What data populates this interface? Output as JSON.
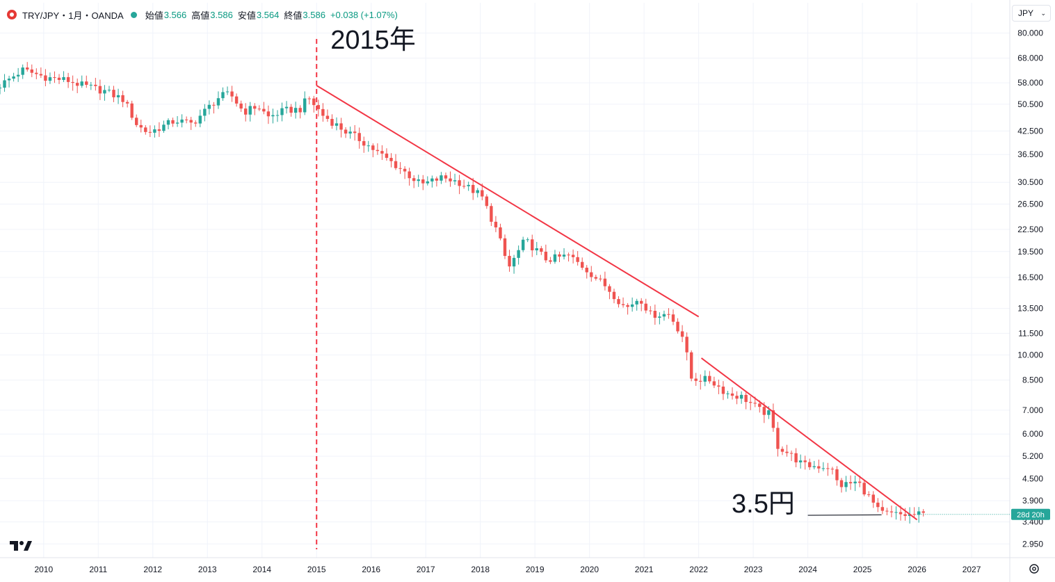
{
  "legend": {
    "symbol": "TRY/JPY・1月・OANDA",
    "open_label": "始値",
    "open": "3.566",
    "high_label": "高値",
    "high": "3.586",
    "low_label": "安値",
    "low": "3.564",
    "close_label": "終値",
    "close": "3.586",
    "change": "+0.038 (+1.07%)"
  },
  "currency_button": {
    "label": "JPY"
  },
  "annotations": {
    "year_marker": "2015年",
    "price_marker": "3.5円"
  },
  "countdown_label": "28d 20h",
  "icons": {
    "logo": "tradingview-logo-icon",
    "settings": "settings-gear-icon",
    "dropdown": "chevron-down-icon"
  },
  "colors": {
    "up": "#26a69a",
    "down": "#ef5350",
    "trendline": "#f23645",
    "grid": "#f0f3fa",
    "text": "#131722",
    "countdown_bg": "#26a69a"
  },
  "chart_data": {
    "type": "candlestick",
    "scale": "log",
    "title": "TRY/JPY・1月・OANDA",
    "y_tick_labels": [
      "80.000",
      "68.000",
      "58.000",
      "50.500",
      "42.500",
      "36.500",
      "30.500",
      "26.500",
      "22.500",
      "19.500",
      "16.500",
      "13.500",
      "11.500",
      "10.000",
      "8.500",
      "7.000",
      "6.000",
      "5.200",
      "4.500",
      "3.900",
      "3.400",
      "2.950"
    ],
    "x_tick_labels": [
      "2010",
      "2011",
      "2012",
      "2013",
      "2014",
      "2015",
      "2016",
      "2017",
      "2018",
      "2019",
      "2020",
      "2021",
      "2022",
      "2023",
      "2024",
      "2025",
      "2026",
      "2027"
    ],
    "x_range": [
      2009.2,
      2027.7
    ],
    "y_range": [
      2.7,
      85
    ],
    "anchors": [
      [
        2009.2,
        56.0
      ],
      [
        2009.7,
        63.0
      ],
      [
        2010.15,
        60.0
      ],
      [
        2010.5,
        59.0
      ],
      [
        2010.8,
        57.0
      ],
      [
        2011.2,
        55.0
      ],
      [
        2011.55,
        52.0
      ],
      [
        2011.8,
        44.0
      ],
      [
        2012.0,
        42.0
      ],
      [
        2012.5,
        45.5
      ],
      [
        2012.8,
        44.5
      ],
      [
        2013.3,
        53.0
      ],
      [
        2013.5,
        54.0
      ],
      [
        2013.75,
        48.0
      ],
      [
        2014.0,
        50.0
      ],
      [
        2014.2,
        46.5
      ],
      [
        2014.5,
        48.5
      ],
      [
        2014.8,
        49.0
      ],
      [
        2014.92,
        53.0
      ],
      [
        2015.2,
        47.0
      ],
      [
        2015.6,
        42.5
      ],
      [
        2015.9,
        40.0
      ],
      [
        2016.2,
        37.0
      ],
      [
        2016.6,
        33.5
      ],
      [
        2017.0,
        30.0
      ],
      [
        2017.4,
        31.5
      ],
      [
        2017.7,
        30.5
      ],
      [
        2018.1,
        28.0
      ],
      [
        2018.4,
        22.0
      ],
      [
        2018.6,
        17.5
      ],
      [
        2018.9,
        21.0
      ],
      [
        2019.3,
        18.5
      ],
      [
        2019.7,
        19.0
      ],
      [
        2020.0,
        17.5
      ],
      [
        2020.4,
        15.5
      ],
      [
        2020.75,
        13.5
      ],
      [
        2021.0,
        14.5
      ],
      [
        2021.2,
        13.0
      ],
      [
        2021.55,
        13.0
      ],
      [
        2021.8,
        11.2
      ],
      [
        2021.95,
        8.6
      ],
      [
        2022.3,
        8.5
      ],
      [
        2022.6,
        7.8
      ],
      [
        2022.9,
        7.6
      ],
      [
        2023.2,
        7.0
      ],
      [
        2023.4,
        6.8
      ],
      [
        2023.5,
        5.6
      ],
      [
        2023.8,
        5.2
      ],
      [
        2024.0,
        4.9
      ],
      [
        2024.5,
        4.85
      ],
      [
        2024.65,
        4.3
      ],
      [
        2025.0,
        4.4
      ],
      [
        2025.2,
        4.0
      ],
      [
        2025.4,
        3.6
      ],
      [
        2025.9,
        3.55
      ],
      [
        2026.15,
        3.57
      ]
    ],
    "trendlines": [
      {
        "from": [
          2015.0,
          57.0
        ],
        "to": [
          2022.0,
          12.8
        ]
      },
      {
        "from": [
          2022.05,
          9.8
        ],
        "to": [
          2026.0,
          3.45
        ]
      },
      {
        "from": [
          2024.0,
          3.55
        ],
        "to": [
          2025.35,
          3.56
        ]
      }
    ],
    "vertical_marker_x": 2015.0
  }
}
